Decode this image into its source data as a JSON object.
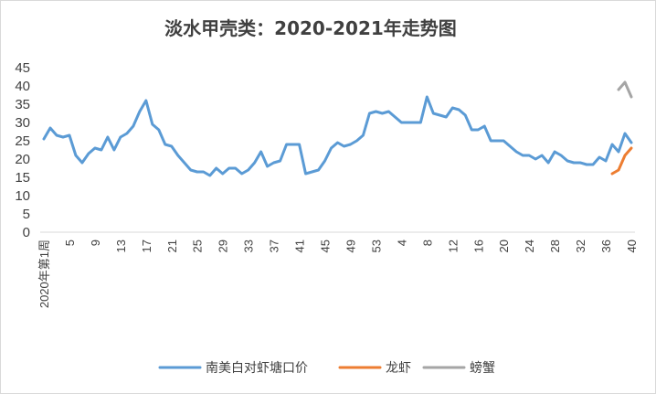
{
  "chart_data": {
    "type": "line",
    "title": "淡水甲壳类：2020-2021年走势图",
    "xlabel": "",
    "ylabel": "",
    "ylim": [
      0,
      45
    ],
    "yticks": [
      0,
      5,
      10,
      15,
      20,
      25,
      30,
      35,
      40,
      45
    ],
    "grid": false,
    "legend_position": "bottom",
    "x_count": 93,
    "x_tick_labels": [
      {
        "index": 0,
        "label": "2020年第1周"
      },
      {
        "index": 4,
        "label": "5"
      },
      {
        "index": 8,
        "label": "9"
      },
      {
        "index": 12,
        "label": "13"
      },
      {
        "index": 16,
        "label": "17"
      },
      {
        "index": 20,
        "label": "21"
      },
      {
        "index": 24,
        "label": "25"
      },
      {
        "index": 28,
        "label": "29"
      },
      {
        "index": 32,
        "label": "33"
      },
      {
        "index": 36,
        "label": "37"
      },
      {
        "index": 40,
        "label": "41"
      },
      {
        "index": 44,
        "label": "45"
      },
      {
        "index": 48,
        "label": "49"
      },
      {
        "index": 52,
        "label": "53"
      },
      {
        "index": 56,
        "label": "4"
      },
      {
        "index": 60,
        "label": "8"
      },
      {
        "index": 64,
        "label": "12"
      },
      {
        "index": 68,
        "label": "16"
      },
      {
        "index": 72,
        "label": "20"
      },
      {
        "index": 76,
        "label": "24"
      },
      {
        "index": 80,
        "label": "28"
      },
      {
        "index": 84,
        "label": "32"
      },
      {
        "index": 88,
        "label": "36"
      },
      {
        "index": 92,
        "label": "40"
      }
    ],
    "series": [
      {
        "name": "南美白对虾塘口价",
        "color": "#5b9bd5",
        "start_index": 0,
        "values": [
          25.5,
          28.5,
          26.5,
          26,
          26.5,
          21,
          19,
          21.5,
          23,
          22.5,
          26,
          22.5,
          26,
          27,
          29,
          33,
          36,
          29.5,
          28,
          24,
          23.5,
          21,
          19,
          17,
          16.5,
          16.5,
          15.5,
          17.5,
          16,
          17.5,
          17.5,
          16,
          17,
          19,
          22,
          18,
          19,
          19.5,
          24,
          24,
          24,
          16,
          16.5,
          17,
          19.5,
          23,
          24.5,
          23.5,
          24,
          25,
          26.5,
          32.5,
          33,
          32.5,
          33,
          31.5,
          30,
          30,
          30,
          30,
          37,
          32.5,
          32,
          31.5,
          34,
          33.5,
          32,
          28,
          28,
          29,
          25,
          25,
          25,
          23.5,
          22,
          21,
          21,
          20,
          21,
          19,
          22,
          21,
          19.5,
          19,
          19,
          18.5,
          18.5,
          20.5,
          19.5,
          24,
          22,
          27,
          24.5
        ]
      },
      {
        "name": "龙虾",
        "color": "#ed7d31",
        "start_index": 89,
        "values": [
          16,
          17,
          21,
          23
        ]
      },
      {
        "name": "螃蟹",
        "color": "#a5a5a5",
        "start_index": 90,
        "values": [
          39,
          41,
          37
        ]
      }
    ]
  }
}
